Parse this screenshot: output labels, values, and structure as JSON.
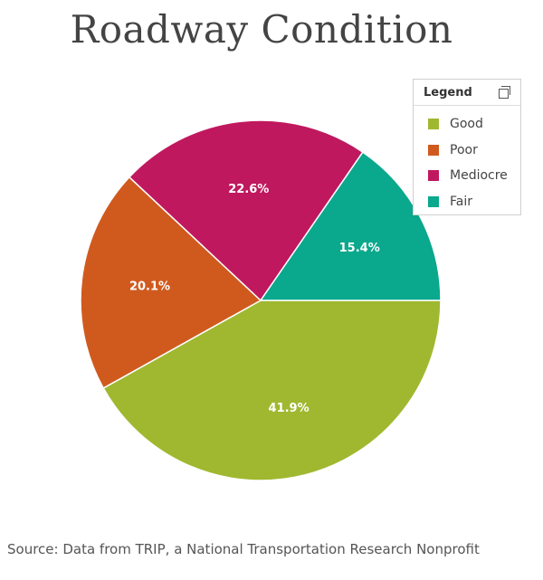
{
  "title": "Roadway Condition",
  "legend": {
    "title": "Legend",
    "icon": "popout-icon"
  },
  "source": "Source: Data from TRIP, a National Transportation Research Nonprofit",
  "chart_data": {
    "type": "pie",
    "title": "Roadway Condition",
    "legend_position": "top-right",
    "slices": [
      {
        "label": "Good",
        "value": 41.9,
        "display": "41.9%",
        "color": "#a0b830"
      },
      {
        "label": "Poor",
        "value": 20.1,
        "display": "20.1%",
        "color": "#d05a1e"
      },
      {
        "label": "Mediocre",
        "value": 22.6,
        "display": "22.6%",
        "color": "#c0185e"
      },
      {
        "label": "Fair",
        "value": 15.4,
        "display": "15.4%",
        "color": "#0aa88c"
      }
    ]
  }
}
